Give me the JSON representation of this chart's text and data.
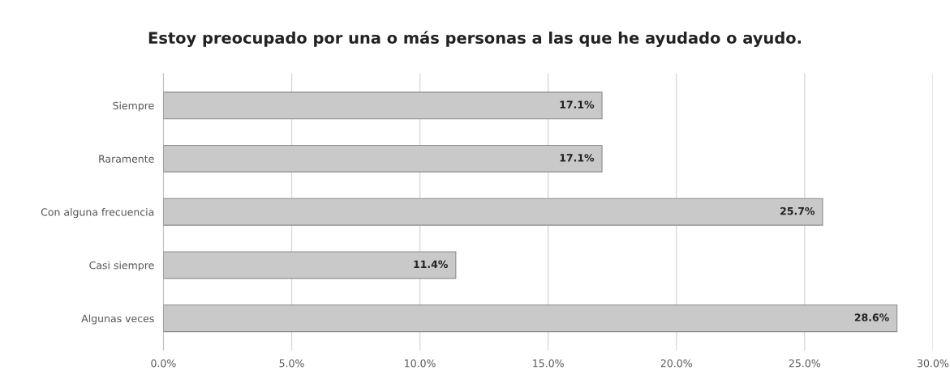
{
  "chart_data": {
    "type": "bar",
    "orientation": "horizontal",
    "title": "Estoy preocupado por una o más personas a las que he ayudado o ayudo.",
    "categories": [
      "Siempre",
      "Raramente",
      "Con alguna frecuencia",
      "Casi siempre",
      "Algunas veces"
    ],
    "values": [
      17.1,
      17.1,
      25.7,
      11.4,
      28.6
    ],
    "value_labels": [
      "17.1%",
      "17.1%",
      "25.7%",
      "11.4%",
      "28.6%"
    ],
    "color": "#c9c9c9",
    "xlim": [
      0,
      30
    ],
    "xticks": [
      {
        "value": 0,
        "label": "0.0%"
      },
      {
        "value": 5,
        "label": "5.0%"
      },
      {
        "value": 10,
        "label": "10.0%"
      },
      {
        "value": 15,
        "label": "15.0%"
      },
      {
        "value": 20,
        "label": "20.0%"
      },
      {
        "value": 25,
        "label": "25.0%"
      },
      {
        "value": 30,
        "label": "30.0%"
      }
    ],
    "grid": "x"
  }
}
